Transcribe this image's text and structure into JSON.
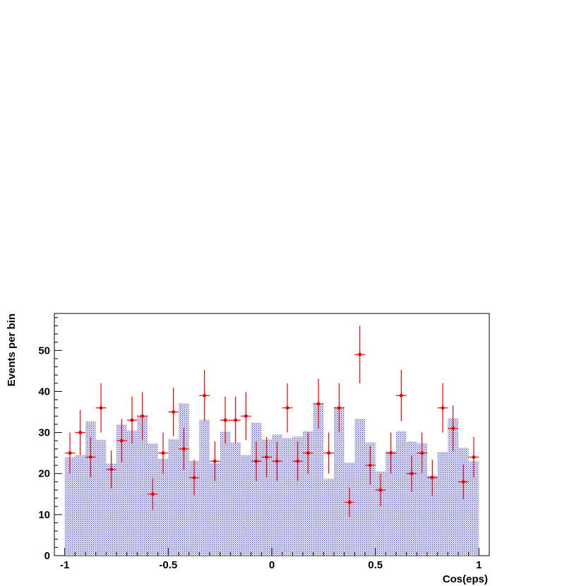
{
  "chart_data": {
    "type": "bar",
    "title": "",
    "xlabel": "Cos(eps)",
    "ylabel": "Events per bin",
    "xlim": [
      -1.05,
      1.05
    ],
    "ylim": [
      0,
      59
    ],
    "x_ticks": [
      -1,
      -0.5,
      0,
      0.5,
      1
    ],
    "x_tick_labels": [
      "-1",
      "-0.5",
      "0",
      "0.5",
      "1"
    ],
    "y_ticks": [
      0,
      10,
      20,
      30,
      40,
      50
    ],
    "y_tick_labels": [
      "0",
      "10",
      "20",
      "30",
      "40",
      "50"
    ],
    "bin_edges_start": -1,
    "bin_width": 0.05,
    "histogram": {
      "color": "#0000cc",
      "values": [
        24,
        24.5,
        32.7,
        28.2,
        22.4,
        31.9,
        30.5,
        33.9,
        27.3,
        23.6,
        28.4,
        37.1,
        23.1,
        33.1,
        22.5,
        30.2,
        27.5,
        24.4,
        32.4,
        28.3,
        29.5,
        28.6,
        29,
        30.3,
        36.8,
        18.7,
        36.2,
        22.7,
        33.3,
        27.6,
        20.5,
        25.4,
        30.3,
        27.8,
        27.4,
        19.5,
        25.3,
        33.5,
        26.3,
        23
      ]
    },
    "data_points": {
      "color": "#ee0000",
      "y": [
        25,
        30,
        24,
        36,
        21,
        28,
        33,
        34,
        15,
        25,
        35,
        26,
        19,
        39,
        23,
        33,
        33,
        34,
        23,
        24,
        23,
        36,
        23,
        25,
        37,
        25,
        36,
        13,
        49,
        22,
        16,
        25,
        39,
        20,
        25,
        19,
        36,
        31,
        18,
        24
      ]
    }
  }
}
